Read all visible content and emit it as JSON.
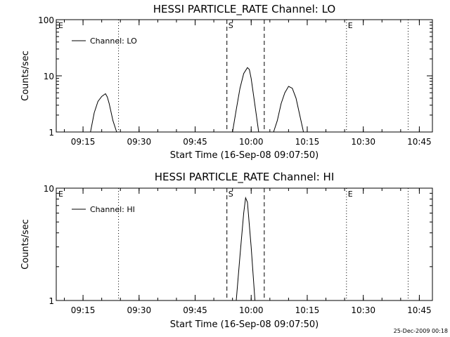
{
  "chart_data": [
    {
      "type": "line",
      "title": "HESSI PARTICLE_RATE Channel: LO",
      "xlabel": "Start Time (16-Sep-08 09:07:50)",
      "ylabel": "Counts/sec",
      "yscale": "log",
      "ylim": [
        1,
        100
      ],
      "xlim": [
        "09:07:50",
        "10:48:30"
      ],
      "ytick_labels": [
        "1",
        "10",
        "100"
      ],
      "xtick_labels": [
        "09:15",
        "09:30",
        "09:45",
        "10:00",
        "10:15",
        "10:30",
        "10:45"
      ],
      "legend": {
        "position": "top-left",
        "label": "Channel: LO"
      },
      "markers": [
        {
          "label": "E",
          "time": "09:07:50",
          "style": "dotted"
        },
        {
          "time": "09:24:30",
          "style": "dotted"
        },
        {
          "label": "S",
          "time": "09:53:30",
          "style": "dashed"
        },
        {
          "time": "10:03:30",
          "style": "dashed"
        },
        {
          "label": "E",
          "time": "10:25:30",
          "style": "dotted"
        },
        {
          "time": "10:42:00",
          "style": "dotted"
        }
      ],
      "series": [
        {
          "label": "Channel: LO",
          "segments": [
            {
              "x": [
                "09:17:00",
                "09:18:00",
                "09:19:00",
                "09:20:00",
                "09:21:00",
                "09:21:30",
                "09:22:00",
                "09:23:00",
                "09:24:00"
              ],
              "y": [
                1.0,
                2.2,
                3.5,
                4.3,
                4.8,
                4.2,
                3.2,
                1.6,
                1.0
              ]
            },
            {
              "x": [
                "09:55:00",
                "09:56:00",
                "09:57:00",
                "09:58:00",
                "09:59:00",
                "09:59:30",
                "10:00:00",
                "10:01:00",
                "10:02:00"
              ],
              "y": [
                1.0,
                2.5,
                6.0,
                11.0,
                14.0,
                13.0,
                9.0,
                3.0,
                1.0
              ]
            },
            {
              "x": [
                "10:06:00",
                "10:07:00",
                "10:08:00",
                "10:09:00",
                "10:10:00",
                "10:11:00",
                "10:12:00",
                "10:13:00",
                "10:14:00"
              ],
              "y": [
                1.0,
                1.6,
                3.2,
                5.0,
                6.5,
                6.0,
                4.0,
                2.0,
                1.0
              ]
            }
          ]
        }
      ]
    },
    {
      "type": "line",
      "title": "HESSI PARTICLE_RATE Channel: HI",
      "xlabel": "Start Time (16-Sep-08 09:07:50)",
      "ylabel": "Counts/sec",
      "yscale": "log",
      "ylim": [
        1,
        10
      ],
      "xlim": [
        "09:07:50",
        "10:48:30"
      ],
      "ytick_labels": [
        "1",
        "10"
      ],
      "xtick_labels": [
        "09:15",
        "09:30",
        "09:45",
        "10:00",
        "10:15",
        "10:30",
        "10:45"
      ],
      "legend": {
        "position": "top-left",
        "label": "Channel: HI"
      },
      "markers": [
        {
          "label": "E",
          "time": "09:07:50",
          "style": "dotted"
        },
        {
          "time": "09:24:30",
          "style": "dotted"
        },
        {
          "label": "S",
          "time": "09:53:30",
          "style": "dashed"
        },
        {
          "time": "10:03:30",
          "style": "dashed"
        },
        {
          "label": "E",
          "time": "10:25:30",
          "style": "dotted"
        },
        {
          "time": "10:42:00",
          "style": "dotted"
        }
      ],
      "series": [
        {
          "label": "Channel: HI",
          "segments": [
            {
              "x": [
                "09:56:00",
                "09:57:00",
                "09:58:00",
                "09:58:30",
                "09:59:00",
                "10:00:00",
                "10:01:00"
              ],
              "y": [
                1.0,
                2.5,
                6.0,
                8.2,
                7.5,
                3.0,
                1.0
              ]
            }
          ]
        }
      ]
    }
  ],
  "footer": {
    "timestamp": "25-Dec-2009 00:18"
  }
}
